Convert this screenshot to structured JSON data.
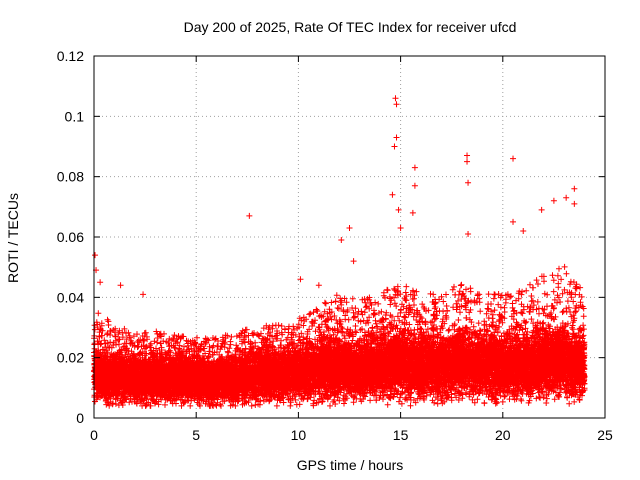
{
  "chart_data": {
    "type": "scatter",
    "title": "Day 200 of 2025, Rate Of TEC Index for receiver ufcd",
    "xlabel": "GPS time / hours",
    "ylabel": "ROTI / TECUs",
    "xlim": [
      0,
      25
    ],
    "ylim": [
      0,
      0.12
    ],
    "xticks": [
      "0",
      "5",
      "10",
      "15",
      "20",
      "25"
    ],
    "yticks": [
      "0",
      "0.02",
      "0.04",
      "0.06",
      "0.08",
      "0.1",
      "0.12"
    ],
    "grid": true,
    "marker": "plus",
    "color": "#ff0000",
    "x_range_of_data": [
      0,
      24
    ],
    "notable_points": [
      {
        "x": 0.05,
        "y": 0.054
      },
      {
        "x": 0.1,
        "y": 0.049
      },
      {
        "x": 0.3,
        "y": 0.045
      },
      {
        "x": 1.3,
        "y": 0.044
      },
      {
        "x": 2.4,
        "y": 0.041
      },
      {
        "x": 7.6,
        "y": 0.067
      },
      {
        "x": 10.1,
        "y": 0.046
      },
      {
        "x": 11.0,
        "y": 0.044
      },
      {
        "x": 12.1,
        "y": 0.059
      },
      {
        "x": 12.5,
        "y": 0.063
      },
      {
        "x": 12.7,
        "y": 0.052
      },
      {
        "x": 14.6,
        "y": 0.074
      },
      {
        "x": 14.75,
        "y": 0.106
      },
      {
        "x": 14.8,
        "y": 0.104
      },
      {
        "x": 14.8,
        "y": 0.093
      },
      {
        "x": 14.7,
        "y": 0.09
      },
      {
        "x": 14.9,
        "y": 0.069
      },
      {
        "x": 15.0,
        "y": 0.063
      },
      {
        "x": 15.7,
        "y": 0.083
      },
      {
        "x": 15.7,
        "y": 0.077
      },
      {
        "x": 15.6,
        "y": 0.068
      },
      {
        "x": 18.25,
        "y": 0.087
      },
      {
        "x": 18.25,
        "y": 0.085
      },
      {
        "x": 18.3,
        "y": 0.078
      },
      {
        "x": 18.3,
        "y": 0.061
      },
      {
        "x": 20.5,
        "y": 0.086
      },
      {
        "x": 20.5,
        "y": 0.065
      },
      {
        "x": 21.0,
        "y": 0.062
      },
      {
        "x": 21.9,
        "y": 0.069
      },
      {
        "x": 22.5,
        "y": 0.072
      },
      {
        "x": 23.1,
        "y": 0.073
      },
      {
        "x": 23.5,
        "y": 0.076
      },
      {
        "x": 23.5,
        "y": 0.071
      }
    ],
    "density_profile": [
      {
        "hour": 0,
        "median": 0.014,
        "upper": 0.035
      },
      {
        "hour": 1,
        "median": 0.013,
        "upper": 0.03
      },
      {
        "hour": 2,
        "median": 0.013,
        "upper": 0.028
      },
      {
        "hour": 3,
        "median": 0.013,
        "upper": 0.028
      },
      {
        "hour": 4,
        "median": 0.013,
        "upper": 0.027
      },
      {
        "hour": 5,
        "median": 0.012,
        "upper": 0.026
      },
      {
        "hour": 6,
        "median": 0.012,
        "upper": 0.026
      },
      {
        "hour": 7,
        "median": 0.013,
        "upper": 0.028
      },
      {
        "hour": 8,
        "median": 0.014,
        "upper": 0.03
      },
      {
        "hour": 9,
        "median": 0.014,
        "upper": 0.03
      },
      {
        "hour": 10,
        "median": 0.015,
        "upper": 0.032
      },
      {
        "hour": 11,
        "median": 0.016,
        "upper": 0.036
      },
      {
        "hour": 12,
        "median": 0.016,
        "upper": 0.04
      },
      {
        "hour": 13,
        "median": 0.016,
        "upper": 0.038
      },
      {
        "hour": 14,
        "median": 0.017,
        "upper": 0.04
      },
      {
        "hour": 15,
        "median": 0.018,
        "upper": 0.044
      },
      {
        "hour": 16,
        "median": 0.017,
        "upper": 0.04
      },
      {
        "hour": 17,
        "median": 0.017,
        "upper": 0.04
      },
      {
        "hour": 18,
        "median": 0.018,
        "upper": 0.044
      },
      {
        "hour": 19,
        "median": 0.017,
        "upper": 0.04
      },
      {
        "hour": 20,
        "median": 0.017,
        "upper": 0.04
      },
      {
        "hour": 21,
        "median": 0.017,
        "upper": 0.042
      },
      {
        "hour": 22,
        "median": 0.018,
        "upper": 0.046
      },
      {
        "hour": 23,
        "median": 0.018,
        "upper": 0.05
      },
      {
        "hour": 24,
        "median": 0.017,
        "upper": 0.04
      }
    ]
  }
}
